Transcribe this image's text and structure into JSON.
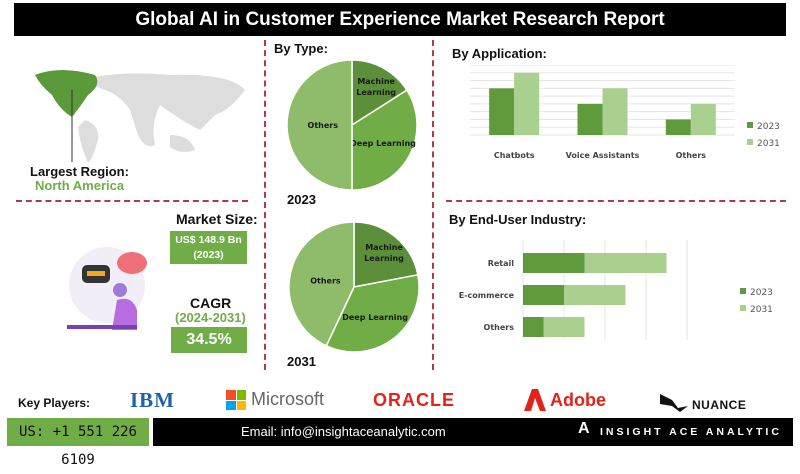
{
  "title": "Global AI in Customer Experience Market Research Report",
  "region": {
    "label": "Largest Region:",
    "value": "North America"
  },
  "market_size": {
    "label": "Market Size:",
    "value": "US$ 148.9 Bn",
    "year": "(2023)"
  },
  "cagr": {
    "label": "CAGR",
    "period": "(2024-2031)",
    "value": "34.5%"
  },
  "colors": {
    "dark": "#5b8f3a",
    "mid": "#70ad47",
    "light": "#a9d08e",
    "pie_others": "#8fbc6a",
    "dash": "#b03a48"
  },
  "chart_data": [
    {
      "type": "pie",
      "title": "By Type:",
      "year": "2023",
      "slices": [
        {
          "label": "Machine Learning",
          "value": 16
        },
        {
          "label": "Deep Learning",
          "value": 34
        },
        {
          "label": "Others",
          "value": 50
        }
      ]
    },
    {
      "type": "pie",
      "year": "2031",
      "slices": [
        {
          "label": "Machine Learning",
          "value": 22
        },
        {
          "label": "Deep Learning",
          "value": 35
        },
        {
          "label": "Others",
          "value": 43
        }
      ]
    },
    {
      "type": "bar",
      "title": "By Application:",
      "categories": [
        "Chatbots",
        "Voice Assistants",
        "Others"
      ],
      "series": [
        {
          "name": "2023",
          "values": [
            6,
            4,
            2
          ]
        },
        {
          "name": "2031",
          "values": [
            8,
            6,
            4
          ]
        }
      ],
      "ylim": [
        0,
        9
      ],
      "grid": true,
      "legend": "right"
    },
    {
      "type": "bar",
      "orientation": "horizontal-stacked",
      "title": "By End-User Industry:",
      "categories": [
        "Retail",
        "E-commerce",
        "Others"
      ],
      "series": [
        {
          "name": "2023",
          "values": [
            1.5,
            1,
            0.5
          ]
        },
        {
          "name": "2031",
          "values": [
            2,
            1.5,
            1
          ]
        }
      ],
      "xlim": [
        0,
        4
      ],
      "grid": true,
      "legend": "right"
    }
  ],
  "footer": {
    "key_players_label": "Key Players:",
    "players": [
      "IBM",
      "Microsoft",
      "ORACLE",
      "Adobe",
      "NUANCE"
    ],
    "phone": "US: +1 551 226 6109",
    "email": "Email: info@insightaceanalytic.com",
    "brand": "INSIGHT ACE ANALYTIC"
  }
}
